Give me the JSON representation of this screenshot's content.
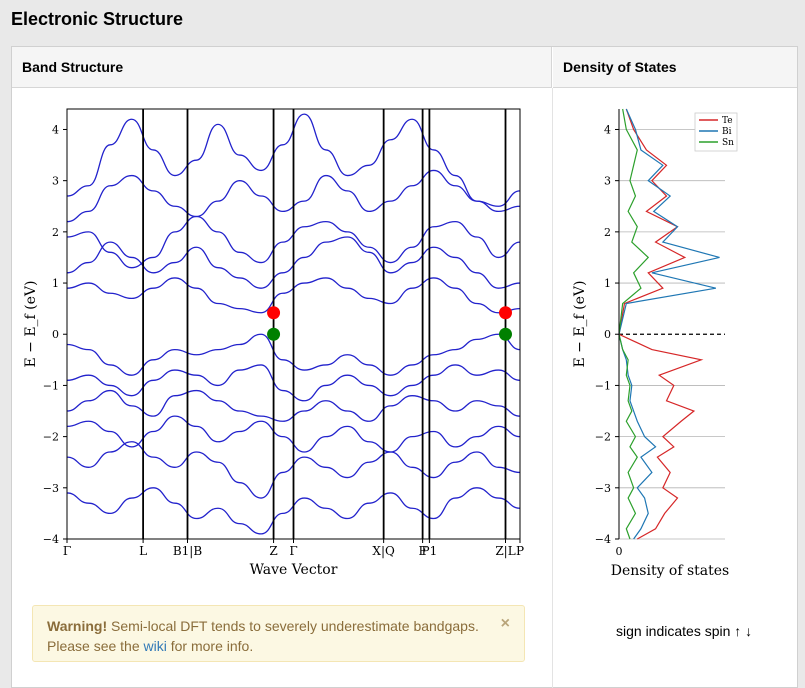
{
  "page_title": "Electronic Structure",
  "panels": {
    "band_title": "Band Structure",
    "dos_title": "Density of States"
  },
  "warning": {
    "strong": "Warning!",
    "text1": " Semi-local DFT tends to severely underestimate bandgaps.",
    "text2": "Please see the ",
    "link": "wiki",
    "text3": " for more info.",
    "close": "×"
  },
  "spin_note": "sign indicates spin ↑ ↓",
  "chart_data": [
    {
      "type": "line",
      "title": "",
      "xlabel": "Wave Vector",
      "ylabel": "E − E_f (eV)",
      "ylim": [
        -4,
        4.4
      ],
      "yticks": [
        -4,
        -3,
        -2,
        -1,
        0,
        1,
        2,
        3,
        4
      ],
      "kpoints": [
        {
          "label": "Γ",
          "x": 0.0
        },
        {
          "label": "L",
          "x": 0.168
        },
        {
          "label": "B1|B",
          "x": 0.266
        },
        {
          "label": "Z",
          "x": 0.456
        },
        {
          "label": "Γ",
          "x": 0.5
        },
        {
          "label": "X|Q",
          "x": 0.699
        },
        {
          "label": "F",
          "x": 0.785
        },
        {
          "label": "P1",
          "x": 0.8
        },
        {
          "label": "Z|L",
          "x": 0.968
        },
        {
          "label": "P",
          "x": 1.0
        }
      ],
      "band_edges": [
        {
          "name": "CBM",
          "x": 0.456,
          "y": 0.42,
          "color": "#ff0000"
        },
        {
          "name": "VBM",
          "x": 0.456,
          "y": 0.0,
          "color": "#008000"
        },
        {
          "name": "CBM",
          "x": 0.968,
          "y": 0.42,
          "color": "#ff0000"
        },
        {
          "name": "VBM",
          "x": 0.968,
          "y": 0.0,
          "color": "#008000"
        }
      ],
      "bands": [
        [
          2.7,
          2.9,
          3.7,
          4.2,
          3.6,
          3.1,
          3.4,
          4.1,
          3.5,
          3.2,
          3.7,
          4.3,
          3.6,
          3.1,
          3.3,
          3.8,
          4.2,
          3.6,
          3.1,
          2.6,
          2.5,
          2.8
        ],
        [
          2.2,
          2.4,
          2.9,
          3.1,
          2.8,
          2.5,
          2.3,
          2.6,
          3.0,
          2.7,
          2.4,
          2.6,
          3.1,
          2.8,
          2.4,
          2.6,
          2.9,
          3.2,
          2.9,
          2.6,
          2.4,
          2.5
        ],
        [
          1.9,
          2.0,
          1.6,
          1.3,
          1.5,
          2.0,
          2.3,
          2.0,
          1.6,
          1.4,
          1.8,
          2.1,
          2.2,
          2.0,
          1.7,
          1.4,
          1.7,
          2.1,
          2.2,
          1.9,
          1.5,
          1.8
        ],
        [
          1.2,
          1.4,
          1.8,
          1.5,
          1.2,
          1.4,
          1.7,
          1.3,
          1.1,
          0.9,
          1.2,
          1.5,
          1.8,
          1.9,
          1.6,
          1.2,
          1.4,
          1.7,
          1.5,
          1.2,
          0.9,
          1.0
        ],
        [
          0.9,
          1.0,
          0.8,
          0.7,
          0.9,
          1.1,
          0.9,
          0.6,
          0.5,
          0.42,
          0.8,
          1.0,
          1.1,
          0.9,
          0.7,
          0.6,
          0.9,
          1.1,
          0.9,
          0.6,
          0.42,
          0.5
        ],
        [
          -0.2,
          -0.3,
          -0.6,
          -0.8,
          -0.5,
          -0.3,
          -0.4,
          -0.3,
          -0.2,
          0.0,
          -0.5,
          -0.7,
          -0.6,
          -0.4,
          -0.6,
          -0.8,
          -0.6,
          -0.4,
          -0.3,
          -0.1,
          0.0,
          -0.3
        ],
        [
          -0.9,
          -0.8,
          -1.0,
          -1.2,
          -0.9,
          -0.7,
          -0.8,
          -1.0,
          -0.7,
          -0.6,
          -1.1,
          -1.3,
          -1.0,
          -0.8,
          -1.0,
          -1.2,
          -1.0,
          -0.8,
          -0.6,
          -0.8,
          -0.7,
          -0.9
        ],
        [
          -1.5,
          -1.3,
          -1.1,
          -1.4,
          -1.6,
          -1.2,
          -1.1,
          -1.3,
          -1.5,
          -1.6,
          -1.7,
          -1.5,
          -1.3,
          -1.5,
          -1.7,
          -1.4,
          -1.2,
          -1.3,
          -1.5,
          -1.3,
          -1.4,
          -1.6
        ],
        [
          -1.8,
          -1.7,
          -1.9,
          -2.2,
          -1.9,
          -1.6,
          -1.8,
          -2.1,
          -1.9,
          -1.7,
          -2.0,
          -2.3,
          -2.0,
          -1.8,
          -2.1,
          -2.3,
          -2.0,
          -1.9,
          -2.2,
          -2.0,
          -1.8,
          -2.0
        ],
        [
          -2.4,
          -2.6,
          -2.3,
          -2.1,
          -2.4,
          -2.6,
          -2.3,
          -2.5,
          -2.9,
          -3.2,
          -2.7,
          -2.4,
          -2.6,
          -2.8,
          -2.5,
          -2.3,
          -2.6,
          -2.8,
          -2.5,
          -2.3,
          -2.6,
          -2.7
        ],
        [
          -3.1,
          -3.3,
          -3.5,
          -3.2,
          -3.0,
          -3.3,
          -3.6,
          -3.4,
          -3.7,
          -3.9,
          -3.5,
          -3.2,
          -3.4,
          -3.6,
          -3.3,
          -3.1,
          -3.4,
          -3.6,
          -3.2,
          -3.0,
          -3.2,
          -3.4
        ]
      ]
    },
    {
      "type": "line",
      "title": "",
      "xlabel": "Density of states",
      "ylabel": "E − E_f (eV)",
      "ylim": [
        -4,
        4.4
      ],
      "yticks": [
        -4,
        -3,
        -2,
        -1,
        0,
        1,
        2,
        3,
        4
      ],
      "xticks": [
        "0"
      ],
      "legend_position": "top-right",
      "series": [
        {
          "name": "Te",
          "color": "#d62728",
          "e": [
            -4.0,
            -3.8,
            -3.5,
            -3.2,
            -3.0,
            -2.7,
            -2.4,
            -2.2,
            -2.0,
            -1.7,
            -1.5,
            -1.3,
            -1.0,
            -0.8,
            -0.5,
            -0.3,
            0.0,
            0.6,
            0.9,
            1.2,
            1.5,
            1.8,
            2.1,
            2.4,
            2.7,
            3.0,
            3.3,
            3.6,
            4.0,
            4.4
          ],
          "dos": [
            1.0,
            2.0,
            2.5,
            3.2,
            2.4,
            2.8,
            2.1,
            3.0,
            2.4,
            3.4,
            4.1,
            2.6,
            3.0,
            2.2,
            4.5,
            1.8,
            0.0,
            0.3,
            2.4,
            1.6,
            3.6,
            2.0,
            3.2,
            1.5,
            2.6,
            1.8,
            2.6,
            1.5,
            0.8,
            0.4
          ]
        },
        {
          "name": "Bi",
          "color": "#1f77b4",
          "e": [
            -4.0,
            -3.8,
            -3.5,
            -3.2,
            -3.0,
            -2.7,
            -2.4,
            -2.2,
            -2.0,
            -1.7,
            -1.5,
            -1.3,
            -1.0,
            -0.8,
            -0.5,
            -0.3,
            0.0,
            0.6,
            0.9,
            1.2,
            1.5,
            1.8,
            2.1,
            2.4,
            2.7,
            3.0,
            3.3,
            3.6,
            4.0,
            4.4
          ],
          "dos": [
            0.8,
            1.2,
            1.6,
            1.4,
            1.0,
            1.8,
            1.2,
            2.0,
            1.4,
            1.0,
            0.8,
            0.6,
            0.7,
            0.5,
            0.4,
            0.2,
            0.0,
            0.4,
            5.3,
            1.8,
            5.5,
            2.4,
            3.2,
            1.9,
            2.8,
            1.6,
            2.4,
            1.2,
            0.9,
            0.4
          ]
        },
        {
          "name": "Sn",
          "color": "#2ca02c",
          "e": [
            -4.0,
            -3.8,
            -3.5,
            -3.2,
            -3.0,
            -2.7,
            -2.4,
            -2.2,
            -2.0,
            -1.7,
            -1.5,
            -1.3,
            -1.0,
            -0.8,
            -0.5,
            -0.3,
            0.0,
            0.6,
            0.9,
            1.2,
            1.5,
            1.8,
            2.1,
            2.4,
            2.7,
            3.0,
            3.3,
            3.6,
            4.0,
            4.4
          ],
          "dos": [
            0.6,
            0.4,
            0.9,
            0.5,
            0.8,
            0.5,
            1.0,
            0.6,
            0.9,
            0.4,
            0.7,
            0.5,
            0.6,
            0.4,
            0.5,
            0.2,
            0.0,
            0.2,
            1.2,
            0.8,
            1.6,
            0.7,
            1.0,
            0.5,
            0.9,
            0.6,
            0.8,
            1.0,
            0.4,
            0.2
          ]
        }
      ]
    }
  ]
}
